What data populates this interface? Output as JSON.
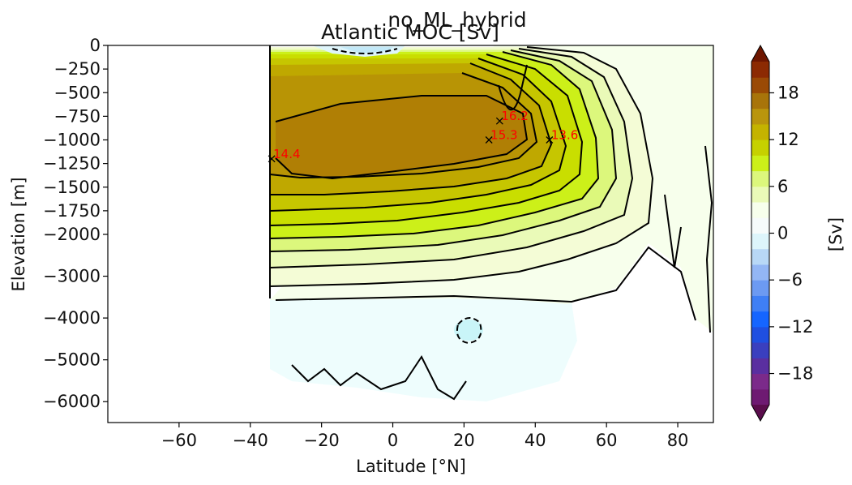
{
  "chart_data": {
    "type": "heatmap",
    "suptitle": "no_ML_hybrid",
    "title": "Atlantic MOC [Sv]",
    "xlabel": "Latitude [°N]",
    "ylabel": "Elevation [m]",
    "xlim": [
      -80,
      90
    ],
    "x_ticks": [
      -60,
      -40,
      -20,
      0,
      20,
      40,
      60,
      80
    ],
    "x_tick_labels": [
      "−60",
      "−40",
      "−20",
      "0",
      "20",
      "40",
      "60",
      "80"
    ],
    "y_ticks": [
      0,
      -250,
      -500,
      -750,
      -1000,
      -1250,
      -1500,
      -1750,
      -2000,
      -3000,
      -4000,
      -5000,
      -6000
    ],
    "y_tick_labels": [
      "0",
      "−250",
      "−500",
      "−750",
      "−1000",
      "−1250",
      "−1500",
      "−1750",
      "−2000",
      "−3000",
      "−4000",
      "−5000",
      "−6000"
    ],
    "colorbar": {
      "label": "[Sv]",
      "ticks": [
        18,
        12,
        6,
        0,
        -6,
        -12,
        -18
      ],
      "tick_labels": [
        "18",
        "12",
        "6",
        "0",
        "−6",
        "−12",
        "−18"
      ],
      "range": [
        -22,
        22
      ],
      "levels": 22,
      "colors": [
        "#5a0d4c",
        "#6e1a72",
        "#7b2a8a",
        "#5a2fa0",
        "#3a3fbf",
        "#1f4fe0",
        "#1565ff",
        "#3f7ff5",
        "#6c9af2",
        "#93b6f4",
        "#b8d8f6",
        "#ddf5fb",
        "#f6fbfb",
        "#f7ffec",
        "#eafab8",
        "#dcf77c",
        "#ccf019",
        "#c6d100",
        "#c4b300",
        "#b9950d",
        "#a8740a",
        "#9a4a05",
        "#8c2a02",
        "#6e1600"
      ]
    },
    "annotations": [
      {
        "lat": -34,
        "depth": -1200,
        "text": "14.4"
      },
      {
        "lat": 27,
        "depth": -1000,
        "text": "15.3"
      },
      {
        "lat": 30,
        "depth": -800,
        "text": "16.2"
      },
      {
        "lat": 44,
        "depth": -1000,
        "text": "13.6"
      }
    ]
  }
}
